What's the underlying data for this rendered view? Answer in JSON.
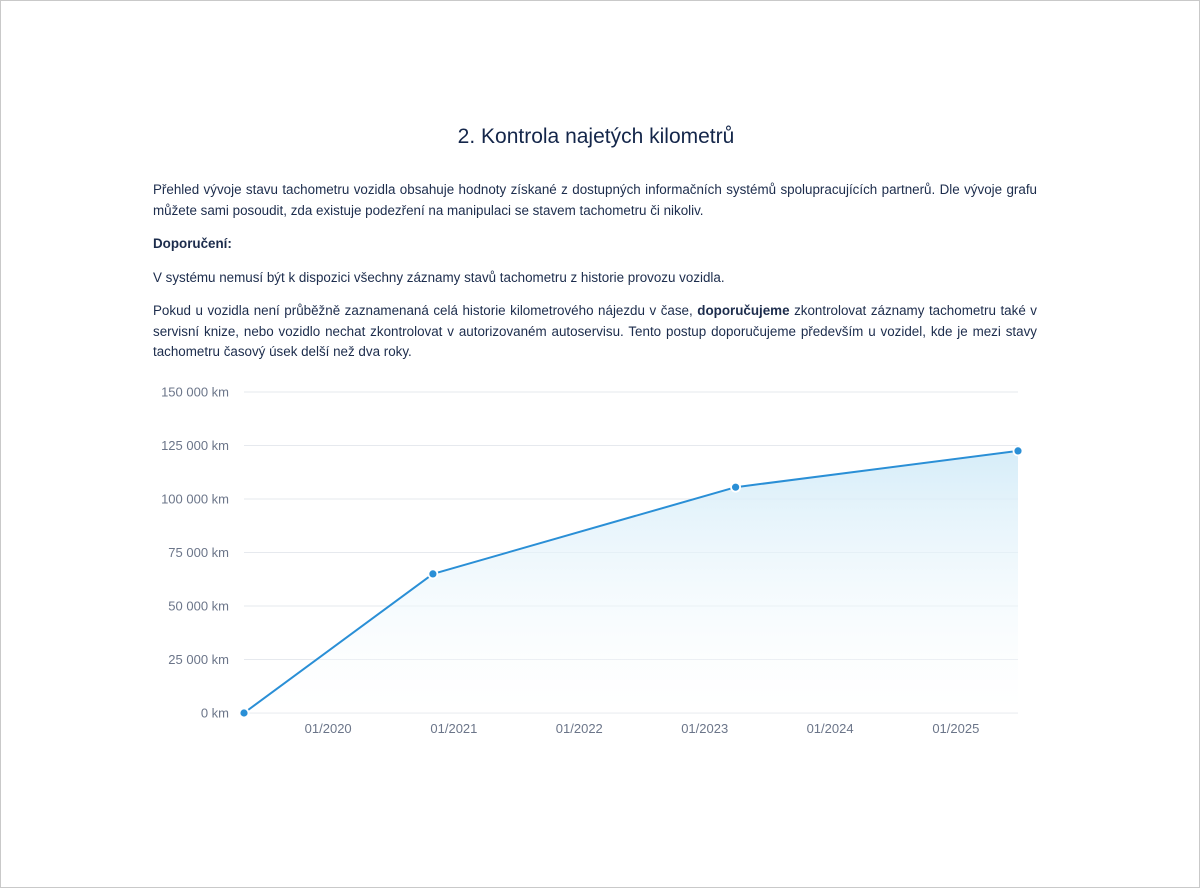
{
  "section": {
    "title": "2. Kontrola najetých kilometrů"
  },
  "paragraphs": {
    "intro": "Přehled vývoje stavu tachometru vozidla obsahuje hodnoty získané z dostupných informačních systémů spolupracujících partnerů. Dle vývoje grafu můžete sami posoudit, zda existuje podezření na manipulaci se stavem tachometru či nikoliv.",
    "recommendation_heading": "Doporučení:",
    "note": "V systému nemusí být k dispozici všechny záznamy stavů tachometru z historie provozu vozidla.",
    "advice_part1": "Pokud u vozidla není průběžně zaznamenaná celá historie kilometrového nájezdu v čase, ",
    "advice_bold": "doporučujeme",
    "advice_part2": " zkontrolovat záznamy tachometru také v servisní knize, nebo vozidlo nechat zkontrolovat v autorizovaném autoservisu. Tento postup doporučujeme především u vozidel, kde je mezi stavy tachometru časový úsek delší než dva roky."
  },
  "colors": {
    "line": "#2a8fd6",
    "fill_top": "#d4ecf8",
    "grid": "#e6e9ee"
  },
  "chart_data": {
    "type": "area",
    "title": "",
    "xlabel": "",
    "ylabel": "",
    "y_unit": "km",
    "ylim": [
      0,
      150000
    ],
    "y_ticks": [
      0,
      25000,
      50000,
      75000,
      100000,
      125000,
      150000
    ],
    "y_tick_labels": [
      "0 km",
      "25 000 km",
      "50 000 km",
      "75 000 km",
      "100 000 km",
      "125 000 km",
      "150 000 km"
    ],
    "x_tick_labels": [
      "01/2020",
      "01/2021",
      "01/2022",
      "01/2023",
      "01/2024",
      "01/2025"
    ],
    "xlim": [
      "2019-05-01",
      "2025-07-01"
    ],
    "grid": true,
    "legend": "none",
    "series": [
      {
        "points": [
          {
            "x": "2019-05-01",
            "y": 0
          },
          {
            "x": "2020-11-01",
            "y": 65000
          },
          {
            "x": "2023-04-01",
            "y": 105500
          },
          {
            "x": "2025-07-01",
            "y": 122500
          }
        ]
      }
    ]
  }
}
